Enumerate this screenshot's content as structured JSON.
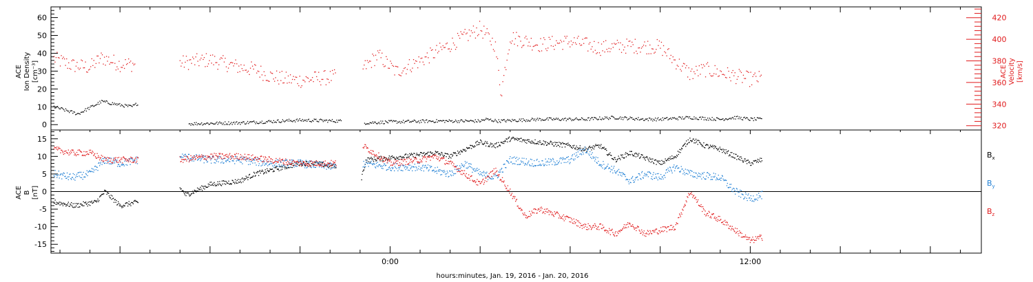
{
  "chart_data": [
    {
      "type": "scatter",
      "panel": "top",
      "ylabel_left": [
        "ACE",
        "Ion Density",
        "[cm⁻³]"
      ],
      "ylabel_right": [
        "ACE",
        "Velocity",
        "[km/s]"
      ],
      "ylim_left": [
        -3,
        66
      ],
      "ylim_right": [
        316,
        430
      ],
      "yticks_left": [
        "0",
        "10",
        "20",
        "30",
        "40",
        "50",
        "60"
      ],
      "yticks_right": [
        "320",
        "340",
        "360",
        "380",
        "400",
        "420"
      ],
      "series": [
        {
          "axis": "left",
          "color": "#000000",
          "segments": [
            {
              "x": [
                -11.2,
                -10.4,
                -9.6,
                -9.0,
                -8.6,
                -8.4
              ],
              "y": [
                10,
                6,
                13,
                11,
                10,
                12
              ]
            },
            {
              "x": [
                -6.7,
                -5.0,
                -3.0,
                -1.6
              ],
              "y": [
                0.5,
                1,
                2.5,
                2
              ]
            },
            {
              "x": [
                -0.85,
                0.0,
                1.5,
                3.0,
                3.2,
                3.6,
                5.0,
                6.5,
                7.5,
                8.5,
                9.0,
                10.0,
                11.0,
                11.5,
                12.0,
                12.4
              ],
              "y": [
                1,
                1.5,
                2,
                2,
                3,
                2,
                3,
                3,
                4,
                3,
                3,
                4,
                3,
                4,
                3,
                3
              ]
            }
          ]
        },
        {
          "axis": "right",
          "color": "#e0191b",
          "segments": [
            {
              "x": [
                -11.2,
                -10.6,
                -10.0,
                -9.6,
                -9.0,
                -8.5
              ],
              "y": [
                382,
                376,
                374,
                383,
                377,
                377
              ]
            },
            {
              "x": [
                -7.0,
                -6.0,
                -5.0,
                -4.5,
                -4.0,
                -3.5,
                -3.0,
                -2.4,
                -1.8
              ],
              "y": [
                378,
                381,
                374,
                372,
                366,
                363,
                362,
                364,
                365
              ]
            },
            {
              "x": [
                -0.9,
                -0.4,
                0.2,
                1.0,
                2.0,
                3.0,
                3.5,
                3.7,
                4.0,
                5.0,
                6.0,
                7.0,
                8.0,
                9.0,
                9.5,
                10.0,
                10.5,
                11.0,
                12.0,
                12.4
              ],
              "y": [
                373,
                385,
                370,
                380,
                395,
                410,
                395,
                350,
                402,
                395,
                398,
                392,
                394,
                393,
                380,
                368,
                372,
                369,
                363,
                364
              ]
            }
          ]
        }
      ]
    },
    {
      "type": "scatter",
      "panel": "bottom",
      "ylabel_left": [
        "ACE",
        "B",
        "[nT]"
      ],
      "ylim": [
        -17.5,
        17.5
      ],
      "yticks": [
        "-15",
        "-10",
        "-5",
        "0",
        "5",
        "10",
        "15"
      ],
      "legend": [
        {
          "label": "B",
          "sub": "x",
          "color": "#000000"
        },
        {
          "label": "B",
          "sub": "y",
          "color": "#1f7fd4"
        },
        {
          "label": "B",
          "sub": "z",
          "color": "#e0191b"
        }
      ],
      "series": [
        {
          "name": "Bx",
          "color": "#000000",
          "segments": [
            {
              "x": [
                -11.2,
                -10.5,
                -9.8,
                -9.5,
                -9.0,
                -8.4
              ],
              "y": [
                -3,
                -4,
                -3,
                0,
                -4,
                -3
              ]
            },
            {
              "x": [
                -7.0,
                -6.8,
                -6.0,
                -5.0,
                -4.5,
                -4.0,
                -3.5,
                -3.0,
                -2.5,
                -1.8
              ],
              "y": [
                1,
                -1,
                2,
                3,
                5,
                6,
                7,
                8,
                8,
                7
              ]
            },
            {
              "x": [
                -0.95,
                -0.8,
                0.5,
                1.5,
                2.0,
                2.5,
                3.0,
                3.5,
                4.0,
                5.0,
                6.0,
                6.5,
                7.0,
                7.5,
                8.0,
                9.0,
                9.5,
                10.0,
                10.5,
                11.0,
                12.0,
                12.4
              ],
              "y": [
                4,
                9,
                10,
                11,
                10,
                12,
                14,
                13,
                15,
                14,
                13,
                12,
                13,
                9,
                11,
                8,
                10,
                15,
                13,
                12,
                8,
                9
              ]
            }
          ]
        },
        {
          "name": "By",
          "color": "#1f7fd4",
          "segments": [
            {
              "x": [
                -11.2,
                -10.6,
                -10.0,
                -9.5,
                -9.0,
                -8.4
              ],
              "y": [
                5,
                4,
                5,
                9,
                8,
                9
              ]
            },
            {
              "x": [
                -7.0,
                -6.0,
                -5.0,
                -4.0,
                -3.0,
                -1.8
              ],
              "y": [
                10,
                9,
                9,
                8,
                8,
                7
              ]
            },
            {
              "x": [
                -0.9,
                0.0,
                1.0,
                2.0,
                2.5,
                3.0,
                3.5,
                4.0,
                5.0,
                6.0,
                6.5,
                7.0,
                7.5,
                8.0,
                8.5,
                9.0,
                9.5,
                10.0,
                11.0,
                11.5,
                12.0,
                12.4
              ],
              "y": [
                8,
                7,
                7,
                5,
                8,
                5,
                4,
                9,
                8,
                9,
                12,
                8,
                6,
                3,
                5,
                4,
                7,
                5,
                4,
                0,
                -2,
                -1
              ]
            }
          ]
        },
        {
          "name": "Bz",
          "color": "#e0191b",
          "segments": [
            {
              "x": [
                -11.2,
                -10.6,
                -10.0,
                -9.5,
                -9.0,
                -8.4
              ],
              "y": [
                12,
                11,
                11,
                9,
                9,
                9
              ]
            },
            {
              "x": [
                -7.0,
                -6.0,
                -5.0,
                -4.0,
                -3.0,
                -1.8
              ],
              "y": [
                9,
                10,
                10,
                9,
                8,
                8
              ]
            },
            {
              "x": [
                -0.9,
                0.0,
                1.0,
                1.5,
                2.0,
                2.5,
                3.0,
                3.5,
                4.0,
                4.5,
                5.0,
                6.0,
                6.5,
                7.0,
                7.5,
                8.0,
                8.5,
                9.0,
                9.5,
                10.0,
                10.5,
                11.0,
                11.5,
                12.0,
                12.4
              ],
              "y": [
                13,
                8,
                9,
                10,
                8,
                5,
                2,
                6,
                0,
                -7,
                -5,
                -8,
                -10,
                -10,
                -12,
                -9,
                -12,
                -11,
                -10,
                0,
                -6,
                -8,
                -11,
                -14,
                -13
              ]
            }
          ]
        }
      ]
    }
  ],
  "xaxis": {
    "label": "hours:minutes, Jan. 19, 2016 - Jan. 20, 2016",
    "xlim": [
      -11.3,
      19.7
    ],
    "ticks": [
      {
        "x": 0,
        "label": "0:00"
      },
      {
        "x": 12,
        "label": "12:00"
      }
    ]
  }
}
